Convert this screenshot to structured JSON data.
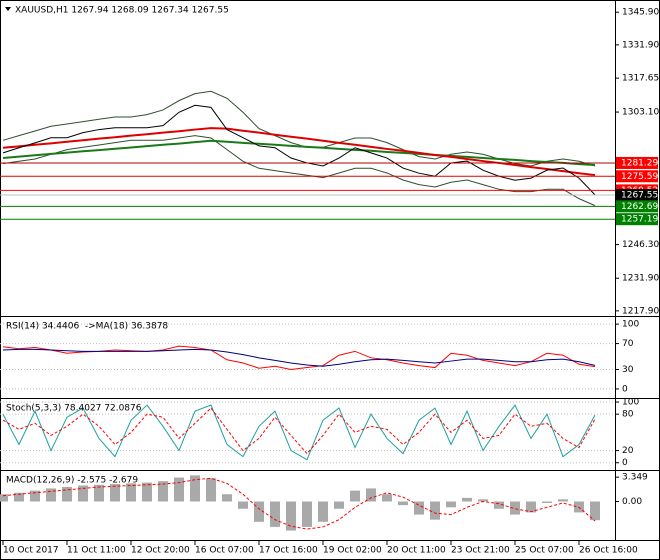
{
  "chart_data": [
    {
      "type": "line",
      "title": "XAUUSD,H1 1267.94 1268.09 1267.34 1267.55",
      "ylim": [
        1215.7,
        1350.7
      ],
      "yticks": [
        {
          "value": 1345.9,
          "label": "1345.90"
        },
        {
          "value": 1331.9,
          "label": "1331.90"
        },
        {
          "value": 1317.65,
          "label": "1317.65"
        },
        {
          "value": 1303.1,
          "label": "1303.10"
        },
        {
          "value": 1246.3,
          "label": "1246.30"
        },
        {
          "value": 1231.9,
          "label": "1231.90"
        },
        {
          "value": 1217.9,
          "label": "1217.90"
        }
      ],
      "series": [
        {
          "color": "#2f4f2f",
          "values": [
            1291,
            1293,
            1295,
            1297,
            1298,
            1299,
            1300,
            1301,
            1301,
            1302,
            1304,
            1308,
            1311,
            1312,
            1309,
            1303,
            1296,
            1293,
            1290,
            1288,
            1288,
            1290,
            1292,
            1292,
            1290,
            1287,
            1284,
            1283,
            1285,
            1286,
            1285,
            1283,
            1281,
            1280,
            1282,
            1283,
            1282,
            1280
          ]
        },
        {
          "color": "#2f4f2f",
          "values": [
            1281,
            1282,
            1283,
            1285,
            1287,
            1288,
            1289,
            1290,
            1291,
            1291,
            1291,
            1292,
            1293,
            1292,
            1287,
            1282,
            1279,
            1278,
            1277,
            1276,
            1275,
            1277,
            1279,
            1279,
            1277,
            1274,
            1272,
            1271,
            1273,
            1274,
            1272,
            1270,
            1269,
            1269,
            1270,
            1270,
            1266,
            1263
          ]
        },
        {
          "color": "#1a7a1a",
          "width": 2,
          "values": [
            1283.4,
            1284.0,
            1284.6,
            1285.2,
            1285.7,
            1286.3,
            1286.8,
            1287.4,
            1287.9,
            1288.5,
            1289.1,
            1289.6,
            1290.2,
            1290.8,
            1290.4,
            1289.9,
            1289.5,
            1289.1,
            1288.6,
            1288.2,
            1287.8,
            1287.3,
            1286.9,
            1286.5,
            1286.0,
            1285.6,
            1285.2,
            1284.7,
            1284.3,
            1283.9,
            1283.4,
            1283.0,
            1282.6,
            1282.1,
            1281.7,
            1281.3,
            1280.8,
            1280.4
          ]
        },
        {
          "color": "#dd0000",
          "width": 2,
          "values": [
            1287.8,
            1288.4,
            1289.1,
            1289.7,
            1290.4,
            1291.0,
            1291.7,
            1292.3,
            1293.0,
            1293.6,
            1294.3,
            1294.9,
            1295.6,
            1296.2,
            1296.0,
            1295.1,
            1294.3,
            1293.4,
            1292.5,
            1291.7,
            1290.8,
            1289.9,
            1289.1,
            1288.2,
            1287.3,
            1286.5,
            1285.6,
            1284.7,
            1283.9,
            1283.0,
            1282.1,
            1281.3,
            1280.4,
            1279.5,
            1278.7,
            1277.8,
            1276.9,
            1276.1
          ]
        },
        {
          "color": "#000000",
          "values": [
            1285.6,
            1287.8,
            1289.9,
            1292.1,
            1292.1,
            1294.3,
            1295.6,
            1296.4,
            1296.4,
            1296.4,
            1297.3,
            1303.0,
            1306.0,
            1305.1,
            1295.6,
            1292.1,
            1288.6,
            1287.8,
            1283.4,
            1281.3,
            1280.0,
            1283.4,
            1287.8,
            1285.6,
            1283.4,
            1279.1,
            1276.9,
            1275.6,
            1281.3,
            1282.1,
            1278.2,
            1275.6,
            1273.9,
            1274.8,
            1278.2,
            1279.1,
            1274.8,
            1267.6
          ]
        }
      ],
      "levels": [
        {
          "value": 1281.29,
          "color": "#ff0000",
          "line": "#b00000"
        },
        {
          "value": 1275.59,
          "color": "#ff0000",
          "line": "#e00000"
        },
        {
          "value": 1269.52,
          "color": "#ff0000",
          "line": "#ff0000"
        },
        {
          "value": 1267.55,
          "color": "#000000",
          "line": "#c0c0c0"
        },
        {
          "value": 1262.69,
          "color": "#008000",
          "line": "#008000"
        },
        {
          "value": 1257.19,
          "color": "#008000",
          "line": "#008000"
        }
      ]
    },
    {
      "type": "line",
      "title": "RSI(14) 34.4406  ->MA(18) 36.3878",
      "ylim": [
        -14,
        111
      ],
      "yticks": [
        100,
        70,
        30,
        0
      ],
      "series": [
        {
          "color": "#ff0000",
          "values": [
            65,
            62,
            64,
            60,
            55,
            57,
            58,
            60,
            59,
            58,
            60,
            66,
            64,
            60,
            45,
            40,
            32,
            35,
            30,
            33,
            36,
            52,
            58,
            48,
            45,
            40,
            36,
            33,
            55,
            52,
            44,
            40,
            36,
            42,
            55,
            52,
            38,
            34.4
          ]
        },
        {
          "color": "#000080",
          "values": [
            60,
            61,
            61,
            60,
            59,
            58,
            58,
            58,
            58,
            58,
            59,
            60,
            61,
            60,
            57,
            53,
            48,
            44,
            40,
            37,
            35,
            38,
            42,
            45,
            46,
            44,
            42,
            40,
            43,
            46,
            46,
            44,
            42,
            42,
            45,
            46,
            42,
            36.4
          ]
        }
      ]
    },
    {
      "type": "line",
      "title": "Stoch(5,3,3) 78.4027 72.0876",
      "ylim": [
        -12,
        105
      ],
      "yticks": [
        100,
        80,
        20,
        0
      ],
      "series": [
        {
          "color": "#20a0a0",
          "values": [
            80,
            30,
            85,
            20,
            75,
            90,
            40,
            10,
            70,
            95,
            60,
            20,
            85,
            95,
            30,
            10,
            60,
            85,
            20,
            5,
            70,
            90,
            25,
            80,
            40,
            15,
            70,
            90,
            30,
            85,
            20,
            60,
            95,
            40,
            80,
            10,
            30,
            78.4
          ]
        },
        {
          "color": "#ff0000",
          "dash": true,
          "values": [
            70,
            55,
            65,
            45,
            60,
            80,
            60,
            30,
            50,
            80,
            75,
            40,
            65,
            90,
            55,
            20,
            40,
            75,
            45,
            15,
            45,
            80,
            50,
            60,
            55,
            30,
            50,
            80,
            50,
            70,
            40,
            45,
            80,
            60,
            65,
            40,
            25,
            72.1
          ]
        }
      ]
    },
    {
      "type": "combo",
      "title": "MACD(12,26,9) -2.575 -2.679",
      "ylim": [
        -5.3,
        4.2
      ],
      "yticks": [
        3.349,
        {
          "value": 0,
          "label": "0.00"
        }
      ],
      "series": [
        {
          "kind": "bar",
          "color": "#a9a9a9",
          "values": [
            1.0,
            1.2,
            1.5,
            1.8,
            2.0,
            2.2,
            2.3,
            2.4,
            2.5,
            2.6,
            2.8,
            3.3,
            3.6,
            3.2,
            1.0,
            -1.0,
            -2.8,
            -3.5,
            -4.0,
            -3.5,
            -2.8,
            -1.0,
            1.5,
            1.8,
            1.0,
            -0.5,
            -1.8,
            -2.5,
            -0.8,
            0.5,
            0.3,
            -1.0,
            -1.8,
            -1.5,
            -0.2,
            0.3,
            -1.5,
            -2.575
          ]
        },
        {
          "kind": "line",
          "color": "#ff0000",
          "dash": true,
          "values": [
            0.8,
            1.0,
            1.2,
            1.4,
            1.6,
            1.8,
            2.0,
            2.1,
            2.2,
            2.3,
            2.4,
            2.6,
            3.0,
            3.2,
            2.5,
            1.0,
            -1.0,
            -2.5,
            -3.4,
            -3.8,
            -3.5,
            -2.5,
            -0.8,
            0.5,
            1.2,
            0.6,
            -0.5,
            -1.6,
            -1.8,
            -0.8,
            0.0,
            -0.3,
            -1.0,
            -1.4,
            -0.8,
            -0.2,
            -0.8,
            -2.679
          ]
        }
      ],
      "xticks": [
        {
          "value": 0,
          "label": "10 Oct 2017"
        },
        {
          "value": 4,
          "label": "11 Oct 11:00"
        },
        {
          "value": 8,
          "label": "12 Oct 20:00"
        },
        {
          "value": 12,
          "label": "16 Oct 07:00"
        },
        {
          "value": 16,
          "label": "17 Oct 16:00"
        },
        {
          "value": 20,
          "label": "19 Oct 02:00"
        },
        {
          "value": 24,
          "label": "20 Oct 11:00"
        },
        {
          "value": 28,
          "label": "23 Oct 21:00"
        },
        {
          "value": 32,
          "label": "25 Oct 07:00"
        },
        {
          "value": 36,
          "label": "26 Oct 16:00"
        }
      ]
    }
  ]
}
